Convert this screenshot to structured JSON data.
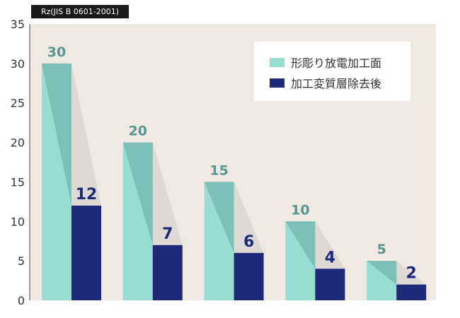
{
  "chart_data": {
    "type": "bar",
    "unit_label": "Rz(JIS B 0601-2001)",
    "categories": [
      "",
      "",
      "",
      "",
      ""
    ],
    "series": [
      {
        "name": "形彫り放電加工面",
        "color": "#97ddd2",
        "values": [
          30,
          20,
          15,
          10,
          5
        ]
      },
      {
        "name": "加工変質層除去後",
        "color": "#1e2a78",
        "values": [
          12,
          7,
          6,
          4,
          2
        ]
      }
    ],
    "ylim": [
      0,
      35
    ],
    "yticks": [
      0,
      5,
      10,
      15,
      20,
      25,
      30,
      35
    ],
    "grid": false,
    "legend_position": "top-right",
    "background": "#efe9e4"
  }
}
